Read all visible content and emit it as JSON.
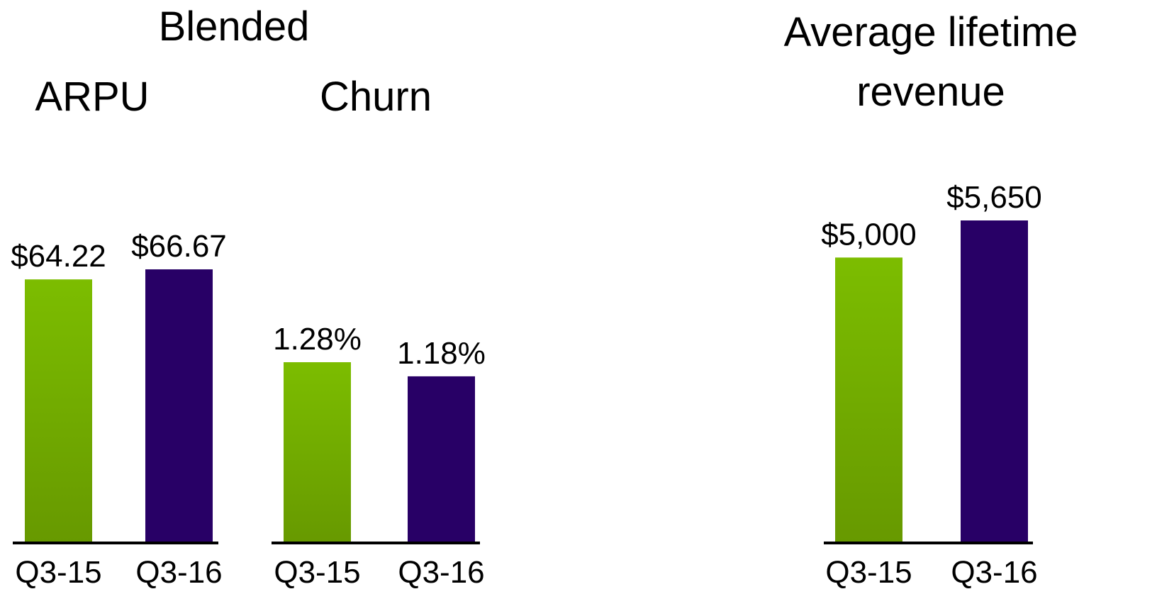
{
  "heading": "Blended",
  "chart_data": [
    {
      "type": "bar",
      "title": "ARPU",
      "categories": [
        "Q3-15",
        "Q3-16"
      ],
      "values": [
        64.22,
        66.67
      ],
      "value_labels": [
        "$64.22",
        "$66.67"
      ],
      "colors": [
        "#76b900",
        "#280066"
      ]
    },
    {
      "type": "bar",
      "title": "Churn",
      "categories": [
        "Q3-15",
        "Q3-16"
      ],
      "values": [
        1.28,
        1.18
      ],
      "value_labels": [
        "1.28%",
        "1.18%"
      ],
      "colors": [
        "#76b900",
        "#280066"
      ]
    },
    {
      "type": "bar",
      "title": "Average lifetime revenue",
      "categories": [
        "Q3-15",
        "Q3-16"
      ],
      "values": [
        5000,
        5650
      ],
      "value_labels": [
        "$5,000",
        "$5,650"
      ],
      "colors": [
        "#76b900",
        "#280066"
      ]
    }
  ]
}
